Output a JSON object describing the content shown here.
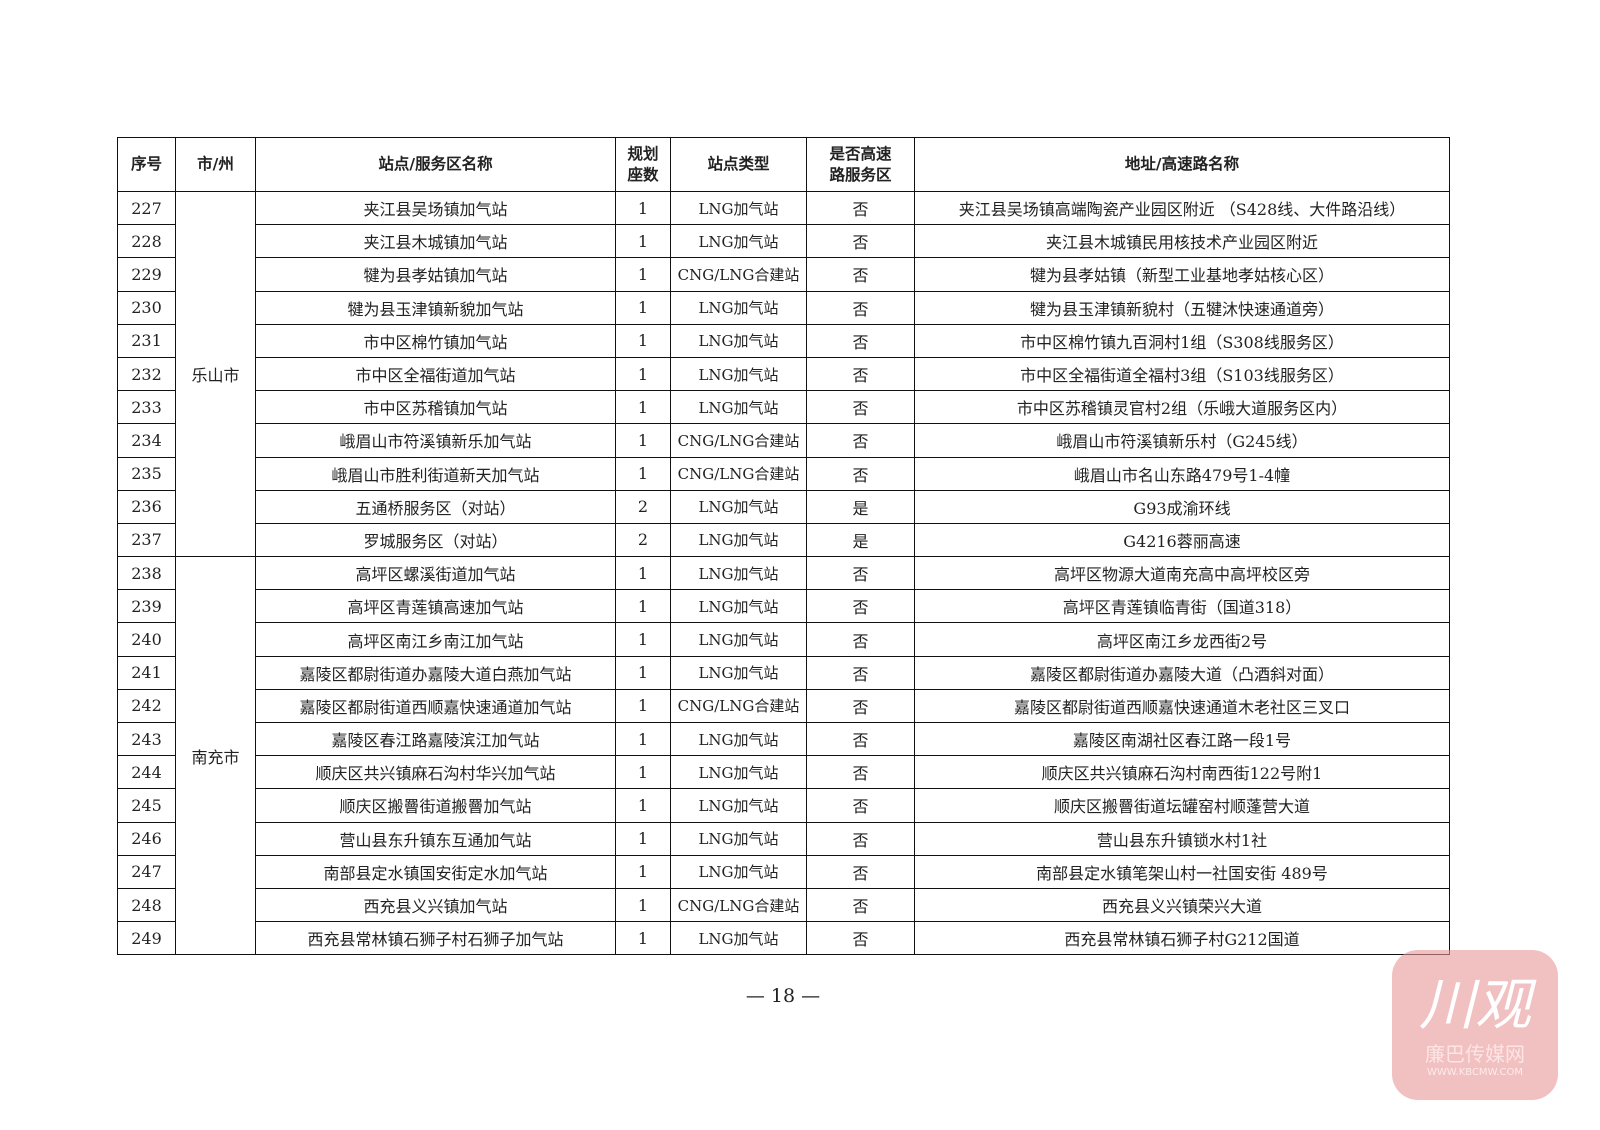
{
  "table": {
    "headers": [
      "序号",
      "市/州",
      "站点/服务区名称",
      "规划\n座数",
      "站点类型",
      "是否高速\n路服务区",
      "地址/高速路名称"
    ],
    "groups": [
      {
        "city": "乐山市",
        "rows": [
          [
            "227",
            "夹江县吴场镇加气站",
            "1",
            "LNG加气站",
            "否",
            "夹江县吴场镇高端陶瓷产业园区附近 （S428线、大件路沿线）"
          ],
          [
            "228",
            "夹江县木城镇加气站",
            "1",
            "LNG加气站",
            "否",
            "夹江县木城镇民用核技术产业园区附近"
          ],
          [
            "229",
            "犍为县孝姑镇加气站",
            "1",
            "CNG/LNG合建站",
            "否",
            "犍为县孝姑镇（新型工业基地孝姑核心区）"
          ],
          [
            "230",
            "犍为县玉津镇新貌加气站",
            "1",
            "LNG加气站",
            "否",
            "犍为县玉津镇新貌村（五犍沐快速通道旁）"
          ],
          [
            "231",
            "市中区棉竹镇加气站",
            "1",
            "LNG加气站",
            "否",
            "市中区棉竹镇九百洞村1组（S308线服务区）"
          ],
          [
            "232",
            "市中区全福街道加气站",
            "1",
            "LNG加气站",
            "否",
            "市中区全福街道全福村3组（S103线服务区）"
          ],
          [
            "233",
            "市中区苏稽镇加气站",
            "1",
            "LNG加气站",
            "否",
            "市中区苏稽镇灵官村2组（乐峨大道服务区内）"
          ],
          [
            "234",
            "峨眉山市符溪镇新乐加气站",
            "1",
            "CNG/LNG合建站",
            "否",
            "峨眉山市符溪镇新乐村（G245线）"
          ],
          [
            "235",
            "峨眉山市胜利街道新天加气站",
            "1",
            "CNG/LNG合建站",
            "否",
            "峨眉山市名山东路479号1-4幢"
          ],
          [
            "236",
            "五通桥服务区（对站）",
            "2",
            "LNG加气站",
            "是",
            "G93成渝环线"
          ],
          [
            "237",
            "罗城服务区（对站）",
            "2",
            "LNG加气站",
            "是",
            "G4216蓉丽高速"
          ]
        ]
      },
      {
        "city": "南充市",
        "rows": [
          [
            "238",
            "高坪区螺溪街道加气站",
            "1",
            "LNG加气站",
            "否",
            "高坪区物源大道南充高中高坪校区旁"
          ],
          [
            "239",
            "高坪区青莲镇高速加气站",
            "1",
            "LNG加气站",
            "否",
            "高坪区青莲镇临青街（国道318）"
          ],
          [
            "240",
            "高坪区南江乡南江加气站",
            "1",
            "LNG加气站",
            "否",
            "高坪区南江乡龙西街2号"
          ],
          [
            "241",
            "嘉陵区都尉街道办嘉陵大道白燕加气站",
            "1",
            "LNG加气站",
            "否",
            "嘉陵区都尉街道办嘉陵大道（凸酒斜对面）"
          ],
          [
            "242",
            "嘉陵区都尉街道西顺嘉快速通道加气站",
            "1",
            "CNG/LNG合建站",
            "否",
            "嘉陵区都尉街道西顺嘉快速通道木老社区三叉口"
          ],
          [
            "243",
            "嘉陵区春江路嘉陵滨江加气站",
            "1",
            "LNG加气站",
            "否",
            "嘉陵区南湖社区春江路一段1号"
          ],
          [
            "244",
            "顺庆区共兴镇麻石沟村华兴加气站",
            "1",
            "LNG加气站",
            "否",
            "顺庆区共兴镇麻石沟村南西街122号附1"
          ],
          [
            "245",
            "顺庆区搬罾街道搬罾加气站",
            "1",
            "LNG加气站",
            "否",
            "顺庆区搬罾街道坛罐窑村顺蓬营大道"
          ],
          [
            "246",
            "营山县东升镇东互通加气站",
            "1",
            "LNG加气站",
            "否",
            "营山县东升镇锁水村1社"
          ],
          [
            "247",
            "南部县定水镇国安街定水加气站",
            "1",
            "LNG加气站",
            "否",
            "南部县定水镇笔架山村一社国安街 489号"
          ],
          [
            "248",
            "西充县义兴镇加气站",
            "1",
            "CNG/LNG合建站",
            "否",
            "西充县义兴镇荣兴大道"
          ],
          [
            "249",
            "西充县常林镇石狮子村石狮子加气站",
            "1",
            "LNG加气站",
            "否",
            "西充县常林镇石狮子村G212国道"
          ]
        ]
      }
    ]
  },
  "footer": {
    "page_number": "— 18 —"
  },
  "watermark": {
    "logo_text": "川观",
    "sub_text": "廉巴传媒网",
    "url_text": "WWW.KBCMW.COM",
    "color": "#e89696"
  }
}
